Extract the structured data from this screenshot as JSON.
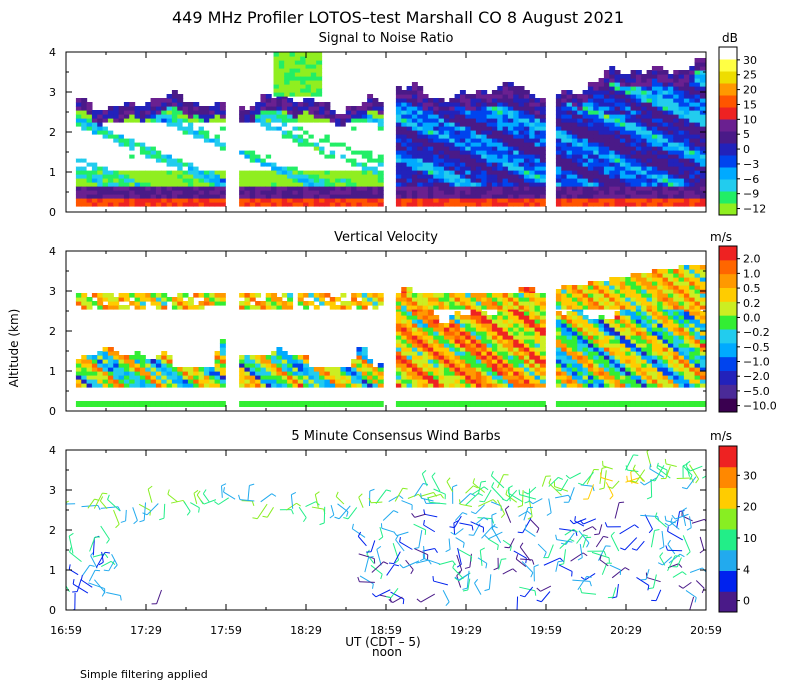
{
  "title": "449 MHz Profiler LOTOS–test Marshall CO  8 August 2021",
  "footnote": "Simple filtering applied",
  "colors": {
    "snr": [
      "#90ee20",
      "#22ee66",
      "#22ccee",
      "#00aaff",
      "#0044ee",
      "#2222bb",
      "#4a1a88",
      "#6a2090",
      "#ee2222",
      "#ff5500",
      "#ff9900",
      "#eedd00",
      "#ffff44",
      "#ffffff"
    ],
    "vv": [
      "#3a0050",
      "#4a2a98",
      "#2222bb",
      "#0044ee",
      "#00aaff",
      "#22ccee",
      "#33ee33",
      "#ccee22",
      "#ffcc00",
      "#ff9900",
      "#ff6600",
      "#ee2222"
    ],
    "wind": [
      "#4a1a88",
      "#0022ee",
      "#22aaee",
      "#22ee88",
      "#88ee22",
      "#ffcc00",
      "#ff8800",
      "#ee2222"
    ]
  },
  "chart_data": [
    {
      "type": "heatmap",
      "title": "Signal to Noise Ratio",
      "xlabel": "UT (CDT – 5)",
      "xlabel_note": "noon",
      "ylabel": "",
      "ylim": [
        0,
        4
      ],
      "yticks": [
        "0",
        "1",
        "2",
        "3",
        "4"
      ],
      "xticks": [
        "16:59",
        "17:29",
        "17:59",
        "18:29",
        "18:59",
        "19:29",
        "19:59",
        "20:29",
        "20:59"
      ],
      "segments": [
        [
          17.0,
          18.0
        ],
        [
          18.02,
          19.0
        ],
        [
          19.0,
          20.0
        ],
        [
          20.0,
          21.0
        ]
      ],
      "colorbar": {
        "unit": "dB",
        "labels": [
          "30",
          "25",
          "20",
          "15",
          "10",
          "5",
          "0",
          "−3",
          "−6",
          "−9",
          "−12"
        ]
      }
    },
    {
      "type": "heatmap",
      "title": "Vertical Velocity",
      "ylabel": "Altitude (km)",
      "ylim": [
        0,
        4
      ],
      "yticks": [
        "0",
        "1",
        "2",
        "3",
        "4"
      ],
      "segments": [
        [
          17.0,
          18.0
        ],
        [
          18.02,
          19.0
        ],
        [
          19.0,
          20.0
        ],
        [
          20.0,
          21.0
        ]
      ],
      "colorbar": {
        "unit": "m/s",
        "labels": [
          "2.0",
          "1.0",
          "0.5",
          "0.2",
          "0.0",
          "−0.2",
          "−0.5",
          "−1.0",
          "−2.0",
          "−5.0",
          "−10.0"
        ]
      }
    },
    {
      "type": "scatter",
      "title": "5 Minute Consensus Wind Barbs",
      "ylim": [
        0,
        4
      ],
      "yticks": [
        "0",
        "1",
        "2",
        "3",
        "4"
      ],
      "colorbar": {
        "unit": "m/s",
        "labels": [
          "30",
          "20",
          "10",
          "4",
          "0"
        ]
      }
    }
  ]
}
